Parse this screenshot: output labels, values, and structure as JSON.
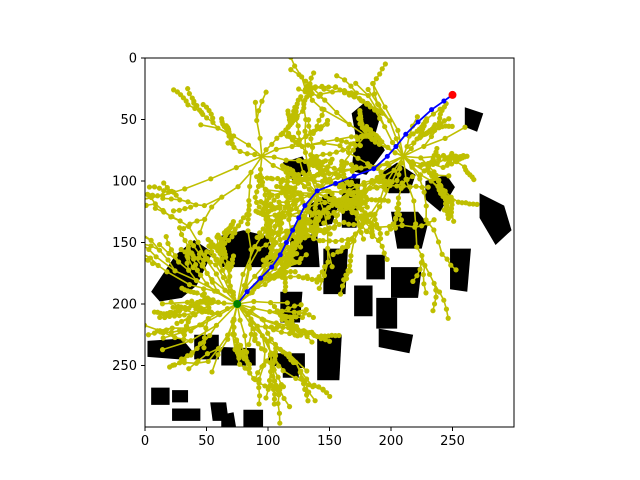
{
  "chart_data": {
    "type": "scatter",
    "title": "",
    "xlabel": "",
    "ylabel": "",
    "xlim": [
      0,
      300
    ],
    "ylim": [
      300,
      0
    ],
    "y_inverted": true,
    "grid": false,
    "x_ticks": [
      0,
      50,
      100,
      150,
      200,
      250
    ],
    "y_ticks": [
      0,
      50,
      100,
      150,
      200,
      250
    ],
    "colors": {
      "tree": "#bfbf00",
      "path": "#0000ff",
      "start": "#008000",
      "goal": "#ff0000",
      "obstacle": "#000000"
    },
    "start": [
      75,
      200
    ],
    "goal": [
      250,
      30
    ],
    "path": [
      [
        75,
        200
      ],
      [
        83,
        190
      ],
      [
        94,
        179
      ],
      [
        103,
        170
      ],
      [
        110,
        160
      ],
      [
        115,
        150
      ],
      [
        120,
        140
      ],
      [
        125,
        130
      ],
      [
        130,
        120
      ],
      [
        140,
        108
      ],
      [
        155,
        102
      ],
      [
        170,
        96
      ],
      [
        186,
        90
      ],
      [
        197,
        80
      ],
      [
        204,
        72
      ],
      [
        212,
        62
      ],
      [
        222,
        52
      ],
      [
        233,
        42
      ],
      [
        243,
        35
      ],
      [
        250,
        30
      ]
    ],
    "obstacles": [
      [
        [
          5,
          190
        ],
        [
          25,
          160
        ],
        [
          40,
          148
        ],
        [
          55,
          158
        ],
        [
          42,
          185
        ],
        [
          30,
          195
        ],
        [
          12,
          198
        ]
      ],
      [
        [
          60,
          145
        ],
        [
          80,
          140
        ],
        [
          100,
          145
        ],
        [
          106,
          165
        ],
        [
          95,
          170
        ],
        [
          62,
          170
        ]
      ],
      [
        [
          118,
          145
        ],
        [
          140,
          143
        ],
        [
          142,
          170
        ],
        [
          118,
          170
        ]
      ],
      [
        [
          132,
          120
        ],
        [
          150,
          110
        ],
        [
          158,
          118
        ],
        [
          152,
          135
        ],
        [
          135,
          138
        ]
      ],
      [
        [
          160,
          98
        ],
        [
          175,
          98
        ],
        [
          172,
          138
        ],
        [
          160,
          138
        ]
      ],
      [
        [
          170,
          70
        ],
        [
          178,
          60
        ],
        [
          190,
          65
        ],
        [
          195,
          75
        ],
        [
          180,
          95
        ],
        [
          168,
          92
        ]
      ],
      [
        [
          168,
          45
        ],
        [
          180,
          35
        ],
        [
          192,
          45
        ],
        [
          185,
          70
        ],
        [
          172,
          68
        ]
      ],
      [
        [
          112,
          85
        ],
        [
          128,
          80
        ],
        [
          135,
          92
        ],
        [
          120,
          100
        ]
      ],
      [
        [
          190,
          95
        ],
        [
          205,
          85
        ],
        [
          220,
          95
        ],
        [
          215,
          110
        ],
        [
          198,
          110
        ]
      ],
      [
        [
          200,
          125
        ],
        [
          222,
          125
        ],
        [
          230,
          135
        ],
        [
          225,
          155
        ],
        [
          205,
          155
        ]
      ],
      [
        [
          228,
          100
        ],
        [
          245,
          95
        ],
        [
          252,
          105
        ],
        [
          240,
          125
        ],
        [
          228,
          115
        ]
      ],
      [
        [
          272,
          110
        ],
        [
          292,
          120
        ],
        [
          298,
          140
        ],
        [
          285,
          152
        ],
        [
          272,
          130
        ]
      ],
      [
        [
          248,
          155
        ],
        [
          265,
          155
        ],
        [
          262,
          190
        ],
        [
          248,
          188
        ]
      ],
      [
        [
          145,
          155
        ],
        [
          165,
          155
        ],
        [
          163,
          192
        ],
        [
          145,
          192
        ]
      ],
      [
        [
          180,
          160
        ],
        [
          195,
          160
        ],
        [
          195,
          180
        ],
        [
          180,
          180
        ]
      ],
      [
        [
          200,
          170
        ],
        [
          225,
          170
        ],
        [
          222,
          195
        ],
        [
          200,
          195
        ]
      ],
      [
        [
          170,
          185
        ],
        [
          185,
          185
        ],
        [
          185,
          210
        ],
        [
          170,
          210
        ]
      ],
      [
        [
          188,
          195
        ],
        [
          205,
          195
        ],
        [
          205,
          220
        ],
        [
          188,
          220
        ]
      ],
      [
        [
          190,
          220
        ],
        [
          218,
          225
        ],
        [
          215,
          240
        ],
        [
          190,
          235
        ]
      ],
      [
        [
          110,
          190
        ],
        [
          128,
          190
        ],
        [
          126,
          215
        ],
        [
          110,
          215
        ]
      ],
      [
        [
          2,
          230
        ],
        [
          30,
          228
        ],
        [
          40,
          240
        ],
        [
          28,
          245
        ],
        [
          2,
          243
        ]
      ],
      [
        [
          40,
          225
        ],
        [
          60,
          225
        ],
        [
          60,
          245
        ],
        [
          40,
          245
        ]
      ],
      [
        [
          62,
          235
        ],
        [
          90,
          236
        ],
        [
          90,
          250
        ],
        [
          62,
          250
        ]
      ],
      [
        [
          100,
          240
        ],
        [
          130,
          240
        ],
        [
          130,
          252
        ],
        [
          110,
          252
        ],
        [
          100,
          248
        ]
      ],
      [
        [
          112,
          250
        ],
        [
          125,
          250
        ],
        [
          125,
          260
        ],
        [
          112,
          260
        ]
      ],
      [
        [
          140,
          225
        ],
        [
          160,
          225
        ],
        [
          158,
          262
        ],
        [
          140,
          262
        ]
      ],
      [
        [
          5,
          268
        ],
        [
          20,
          268
        ],
        [
          20,
          282
        ],
        [
          5,
          282
        ]
      ],
      [
        [
          22,
          270
        ],
        [
          35,
          270
        ],
        [
          35,
          280
        ],
        [
          22,
          280
        ]
      ],
      [
        [
          22,
          285
        ],
        [
          45,
          285
        ],
        [
          45,
          295
        ],
        [
          22,
          295
        ]
      ],
      [
        [
          53,
          280
        ],
        [
          66,
          280
        ],
        [
          68,
          295
        ],
        [
          55,
          295
        ]
      ],
      [
        [
          62,
          290
        ],
        [
          72,
          288
        ],
        [
          74,
          300
        ],
        [
          62,
          300
        ]
      ],
      [
        [
          80,
          286
        ],
        [
          96,
          286
        ],
        [
          96,
          300
        ],
        [
          80,
          300
        ]
      ],
      [
        [
          260,
          40
        ],
        [
          275,
          45
        ],
        [
          270,
          60
        ],
        [
          260,
          56
        ]
      ]
    ]
  }
}
